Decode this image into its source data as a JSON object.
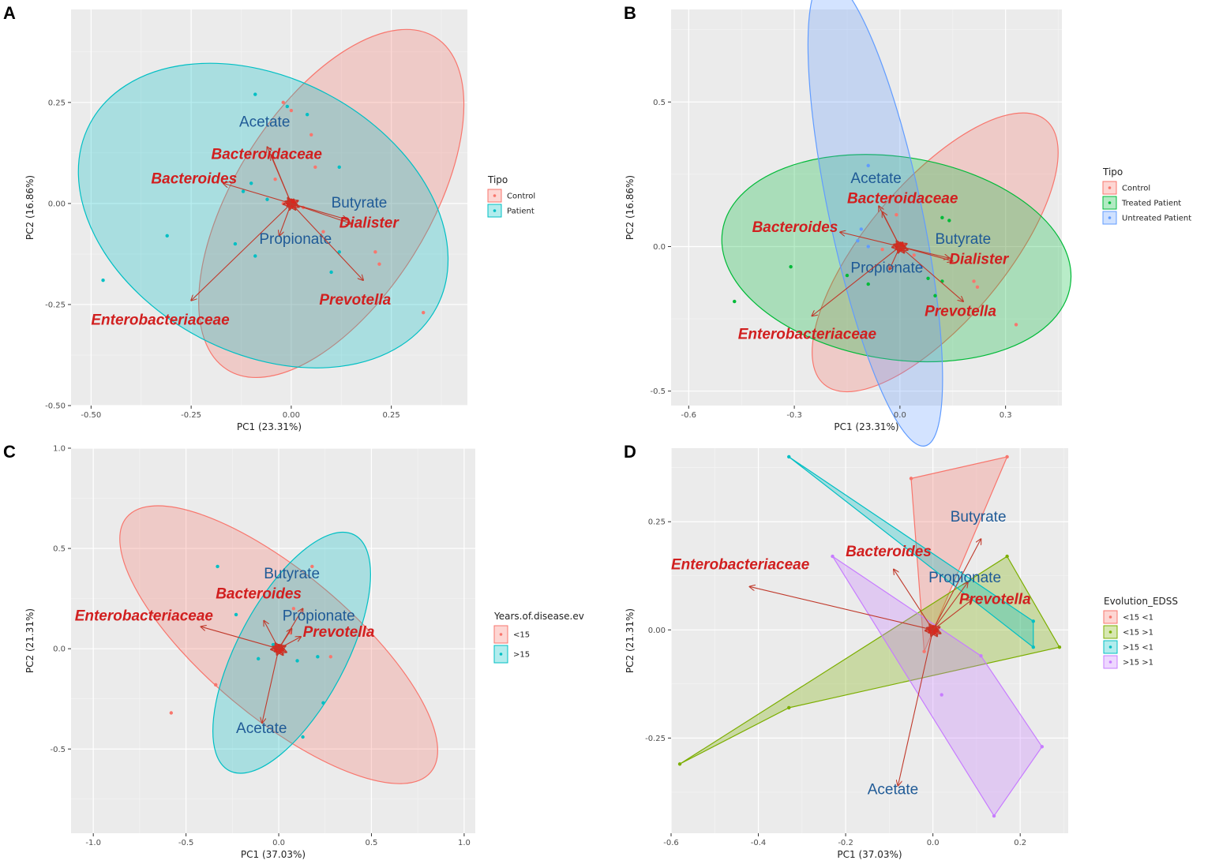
{
  "chart_data": [
    {
      "panel": "A",
      "type": "scatter",
      "title": "",
      "xlabel": "PC1 (23.31%)",
      "ylabel": "PC2 (16.86%)",
      "xlim": [
        -0.55,
        0.44
      ],
      "ylim": [
        -0.5,
        0.48
      ],
      "xticks": [
        -0.5,
        -0.25,
        0.0,
        0.25
      ],
      "xtick_labels": [
        "-0.50",
        "-0.25",
        "0.00",
        "0.25"
      ],
      "yticks": [
        -0.5,
        -0.25,
        0.0,
        0.25
      ],
      "ytick_labels": [
        "-0.50",
        "-0.25",
        "0.00",
        "0.25"
      ],
      "legend_title": "Tipo",
      "legend": [
        {
          "name": "Control",
          "color": "#F8766D"
        },
        {
          "name": "Patient",
          "color": "#00BFC4"
        }
      ],
      "ellipses": [
        {
          "group": "Control",
          "color": "#F8766D",
          "cx": 0.1,
          "cy": 0.0,
          "rx": 0.49,
          "ry": 0.24,
          "angle": -58
        },
        {
          "group": "Patient",
          "color": "#00BFC4",
          "cx": -0.07,
          "cy": -0.03,
          "rx": 0.49,
          "ry": 0.34,
          "angle": 28
        }
      ],
      "points": [
        {
          "x": -0.09,
          "y": 0.27,
          "g": 1
        },
        {
          "x": -0.02,
          "y": 0.25,
          "g": 0
        },
        {
          "x": -0.01,
          "y": 0.24,
          "g": 1
        },
        {
          "x": 0.0,
          "y": 0.23,
          "g": 0
        },
        {
          "x": 0.04,
          "y": 0.22,
          "g": 1
        },
        {
          "x": 0.05,
          "y": 0.17,
          "g": 0
        },
        {
          "x": 0.12,
          "y": 0.09,
          "g": 1
        },
        {
          "x": -0.04,
          "y": 0.06,
          "g": 0
        },
        {
          "x": -0.12,
          "y": 0.03,
          "g": 1
        },
        {
          "x": -0.06,
          "y": 0.01,
          "g": 1
        },
        {
          "x": -0.02,
          "y": 0.0,
          "g": 0
        },
        {
          "x": 0.03,
          "y": -0.01,
          "g": 0
        },
        {
          "x": -0.31,
          "y": -0.08,
          "g": 1
        },
        {
          "x": -0.14,
          "y": -0.1,
          "g": 1
        },
        {
          "x": -0.09,
          "y": -0.13,
          "g": 1
        },
        {
          "x": 0.08,
          "y": -0.07,
          "g": 0
        },
        {
          "x": 0.12,
          "y": -0.12,
          "g": 1
        },
        {
          "x": 0.22,
          "y": -0.15,
          "g": 0
        },
        {
          "x": 0.21,
          "y": -0.12,
          "g": 0
        },
        {
          "x": 0.1,
          "y": -0.17,
          "g": 1
        },
        {
          "x": -0.47,
          "y": -0.19,
          "g": 1
        },
        {
          "x": 0.33,
          "y": -0.27,
          "g": 0
        },
        {
          "x": 0.06,
          "y": 0.09,
          "g": 0
        },
        {
          "x": -0.1,
          "y": 0.05,
          "g": 1
        }
      ],
      "arrows": [
        {
          "label": "Acetate",
          "x": -0.06,
          "y": 0.14,
          "lx": -0.13,
          "ly": 0.19,
          "style": "blue"
        },
        {
          "label": "Bacteroidaceae",
          "x": -0.05,
          "y": 0.12,
          "lx": -0.2,
          "ly": 0.11,
          "style": "red"
        },
        {
          "label": "Bacteroides",
          "x": -0.17,
          "y": 0.05,
          "lx": -0.35,
          "ly": 0.05,
          "style": "red"
        },
        {
          "label": "Butyrate",
          "x": 0.14,
          "y": -0.04,
          "lx": 0.1,
          "ly": -0.01,
          "style": "blue"
        },
        {
          "label": "Dialister",
          "x": 0.15,
          "y": -0.05,
          "lx": 0.12,
          "ly": -0.06,
          "style": "red"
        },
        {
          "label": "Propionate",
          "x": -0.03,
          "y": -0.08,
          "lx": -0.08,
          "ly": -0.1,
          "style": "blue"
        },
        {
          "label": "Prevotella",
          "x": 0.18,
          "y": -0.19,
          "lx": 0.07,
          "ly": -0.25,
          "style": "red"
        },
        {
          "label": "Enterobacteriaceae",
          "x": -0.25,
          "y": -0.24,
          "lx": -0.5,
          "ly": -0.3,
          "style": "red"
        }
      ]
    },
    {
      "panel": "B",
      "type": "scatter",
      "title": "",
      "xlabel": "PC1 (23.31%)",
      "ylabel": "PC2 (16.86%)",
      "xlim": [
        -0.65,
        0.46
      ],
      "ylim": [
        -0.55,
        0.82
      ],
      "xticks": [
        -0.6,
        -0.3,
        0.0,
        0.3
      ],
      "xtick_labels": [
        "-0.6",
        "-0.3",
        "0.0",
        "0.3"
      ],
      "yticks": [
        -0.5,
        0.0,
        0.5
      ],
      "ytick_labels": [
        "-0.5",
        "0.0",
        "0.5"
      ],
      "legend_title": "Tipo",
      "legend": [
        {
          "name": "Control",
          "color": "#F8766D"
        },
        {
          "name": "Treated Patient",
          "color": "#00BA38"
        },
        {
          "name": "Untreated Patient",
          "color": "#619CFF"
        }
      ],
      "ellipses": [
        {
          "group": "Control",
          "color": "#F8766D",
          "cx": 0.1,
          "cy": -0.02,
          "rx": 0.49,
          "ry": 0.24,
          "angle": -50
        },
        {
          "group": "Treated Patient",
          "color": "#00BA38",
          "cx": -0.01,
          "cy": -0.04,
          "rx": 0.5,
          "ry": 0.35,
          "angle": 9
        },
        {
          "group": "Untreated Patient",
          "color": "#619CFF",
          "cx": -0.07,
          "cy": 0.12,
          "rx": 0.68,
          "ry": 0.16,
          "angle": 78
        }
      ],
      "points": [
        {
          "x": -0.09,
          "y": 0.28,
          "g": 2
        },
        {
          "x": -0.03,
          "y": 0.17,
          "g": 0
        },
        {
          "x": -0.01,
          "y": 0.11,
          "g": 0
        },
        {
          "x": 0.12,
          "y": 0.1,
          "g": 1
        },
        {
          "x": 0.14,
          "y": 0.09,
          "g": 1
        },
        {
          "x": -0.12,
          "y": 0.02,
          "g": 2
        },
        {
          "x": -0.09,
          "y": 0.0,
          "g": 2
        },
        {
          "x": -0.05,
          "y": -0.01,
          "g": 0
        },
        {
          "x": 0.04,
          "y": -0.03,
          "g": 0
        },
        {
          "x": -0.31,
          "y": -0.07,
          "g": 1
        },
        {
          "x": -0.15,
          "y": -0.1,
          "g": 1
        },
        {
          "x": -0.09,
          "y": -0.13,
          "g": 1
        },
        {
          "x": 0.08,
          "y": -0.11,
          "g": 1
        },
        {
          "x": 0.12,
          "y": -0.12,
          "g": 1
        },
        {
          "x": 0.22,
          "y": -0.14,
          "g": 0
        },
        {
          "x": 0.21,
          "y": -0.12,
          "g": 0
        },
        {
          "x": 0.1,
          "y": -0.17,
          "g": 1
        },
        {
          "x": -0.47,
          "y": -0.19,
          "g": 1
        },
        {
          "x": 0.33,
          "y": -0.27,
          "g": 0
        },
        {
          "x": -0.11,
          "y": 0.06,
          "g": 2
        },
        {
          "x": 0.06,
          "y": -0.07,
          "g": 2
        }
      ],
      "arrows": [
        {
          "label": "Acetate",
          "x": -0.06,
          "y": 0.14,
          "lx": -0.14,
          "ly": 0.22,
          "style": "blue"
        },
        {
          "label": "Bacteroidaceae",
          "x": -0.05,
          "y": 0.12,
          "lx": -0.15,
          "ly": 0.15,
          "style": "red"
        },
        {
          "label": "Bacteroides",
          "x": -0.17,
          "y": 0.05,
          "lx": -0.42,
          "ly": 0.05,
          "style": "red"
        },
        {
          "label": "Butyrate",
          "x": 0.14,
          "y": -0.04,
          "lx": 0.1,
          "ly": 0.01,
          "style": "blue"
        },
        {
          "label": "Dialister",
          "x": 0.15,
          "y": -0.05,
          "lx": 0.14,
          "ly": -0.06,
          "style": "red"
        },
        {
          "label": "Propionate",
          "x": -0.03,
          "y": -0.08,
          "lx": -0.14,
          "ly": -0.09,
          "style": "blue"
        },
        {
          "label": "Prevotella",
          "x": 0.18,
          "y": -0.19,
          "lx": 0.07,
          "ly": -0.24,
          "style": "red"
        },
        {
          "label": "Enterobacteriaceae",
          "x": -0.25,
          "y": -0.24,
          "lx": -0.46,
          "ly": -0.32,
          "style": "red"
        }
      ]
    },
    {
      "panel": "C",
      "type": "scatter",
      "title": "",
      "xlabel": "PC1 (37.03%)",
      "ylabel": "PC2 (21.31%)",
      "xlim": [
        -1.12,
        1.06
      ],
      "ylim": [
        -0.92,
        1.0
      ],
      "xticks": [
        -1.0,
        -0.5,
        0.0,
        0.5,
        1.0
      ],
      "xtick_labels": [
        "-1.0",
        "-0.5",
        "0.0",
        "0.5",
        "1.0"
      ],
      "yticks": [
        -0.5,
        0.0,
        0.5,
        1.0
      ],
      "ytick_labels": [
        "-0.5",
        "0.0",
        "0.5",
        "1.0"
      ],
      "legend_title": "Years.of.disease.ev",
      "legend": [
        {
          "name": "<15",
          "color": "#F8766D"
        },
        {
          "name": ">15",
          "color": "#00BFC4"
        }
      ],
      "ellipses": [
        {
          "group": "<15",
          "color": "#F8766D",
          "cx": 0.0,
          "cy": 0.02,
          "rx": 1.07,
          "ry": 0.36,
          "angle": 40
        },
        {
          "group": ">15",
          "color": "#00BFC4",
          "cx": 0.07,
          "cy": -0.02,
          "rx": 0.72,
          "ry": 0.27,
          "angle": -62
        }
      ],
      "points": [
        {
          "x": -0.33,
          "y": 0.41,
          "g": 1
        },
        {
          "x": 0.18,
          "y": 0.41,
          "g": 0
        },
        {
          "x": -0.23,
          "y": 0.17,
          "g": 1
        },
        {
          "x": 0.08,
          "y": 0.2,
          "g": 0
        },
        {
          "x": -0.03,
          "y": 0.02,
          "g": 1
        },
        {
          "x": 0.21,
          "y": -0.04,
          "g": 1
        },
        {
          "x": 0.28,
          "y": -0.04,
          "g": 0
        },
        {
          "x": 0.1,
          "y": -0.06,
          "g": 1
        },
        {
          "x": -0.34,
          "y": -0.18,
          "g": 0
        },
        {
          "x": 0.24,
          "y": -0.27,
          "g": 1
        },
        {
          "x": -0.58,
          "y": -0.32,
          "g": 0
        },
        {
          "x": 0.13,
          "y": -0.44,
          "g": 1
        },
        {
          "x": -0.11,
          "y": -0.05,
          "g": 1
        },
        {
          "x": 0.06,
          "y": 0.08,
          "g": 0
        }
      ],
      "arrows": [
        {
          "label": "Butyrate",
          "x": 0.13,
          "y": 0.2,
          "lx": -0.08,
          "ly": 0.35,
          "style": "blue"
        },
        {
          "label": "Bacteroides",
          "x": -0.08,
          "y": 0.14,
          "lx": -0.34,
          "ly": 0.25,
          "style": "red"
        },
        {
          "label": "Propionate",
          "x": 0.07,
          "y": 0.1,
          "lx": 0.02,
          "ly": 0.14,
          "style": "blue"
        },
        {
          "label": "Prevotella",
          "x": 0.12,
          "y": 0.06,
          "lx": 0.13,
          "ly": 0.06,
          "style": "red"
        },
        {
          "label": "Enterobacteriaceae",
          "x": -0.42,
          "y": 0.11,
          "lx": -1.1,
          "ly": 0.14,
          "style": "red"
        },
        {
          "label": "Acetate",
          "x": -0.09,
          "y": -0.37,
          "lx": -0.23,
          "ly": -0.42,
          "style": "blue"
        }
      ]
    },
    {
      "panel": "D",
      "type": "scatter",
      "title": "",
      "xlabel": "PC1 (37.03%)",
      "ylabel": "PC2 (21.31%)",
      "xlim": [
        -0.6,
        0.31
      ],
      "ylim": [
        -0.47,
        0.42
      ],
      "xticks": [
        -0.6,
        -0.4,
        -0.2,
        0.0,
        0.2
      ],
      "xtick_labels": [
        "-0.6",
        "-0.4",
        "-0.2",
        "0.0",
        "0.2"
      ],
      "yticks": [
        -0.25,
        0.0,
        0.25
      ],
      "ytick_labels": [
        "-0.25",
        "0.00",
        "0.25"
      ],
      "legend_title": "Evolution_EDSS",
      "legend": [
        {
          "name": "<15 <1",
          "color": "#F8766D"
        },
        {
          "name": "<15 >1",
          "color": "#7CAE00"
        },
        {
          "name": ">15 <1",
          "color": "#00BFC4"
        },
        {
          "name": ">15 >1",
          "color": "#C77CFF"
        }
      ],
      "hulls": [
        {
          "group": "<15 <1",
          "color": "#F8766D",
          "pts": [
            [
              -0.05,
              0.35
            ],
            [
              0.17,
              0.4
            ],
            [
              -0.02,
              -0.05
            ]
          ]
        },
        {
          "group": "<15 >1",
          "color": "#7CAE00",
          "pts": [
            [
              -0.58,
              -0.31
            ],
            [
              0.17,
              0.17
            ],
            [
              0.29,
              -0.04
            ],
            [
              -0.33,
              -0.18
            ]
          ]
        },
        {
          "group": ">15 <1",
          "color": "#00BFC4",
          "pts": [
            [
              -0.33,
              0.4
            ],
            [
              0.23,
              0.02
            ],
            [
              0.23,
              -0.04
            ]
          ]
        },
        {
          "group": ">15 >1",
          "color": "#C77CFF",
          "pts": [
            [
              -0.23,
              0.17
            ],
            [
              0.11,
              -0.06
            ],
            [
              0.25,
              -0.27
            ],
            [
              0.14,
              -0.43
            ]
          ]
        }
      ],
      "points": [
        {
          "x": -0.05,
          "y": 0.35,
          "g": 0
        },
        {
          "x": 0.17,
          "y": 0.4,
          "g": 0
        },
        {
          "x": -0.02,
          "y": -0.05,
          "g": 0
        },
        {
          "x": -0.58,
          "y": -0.31,
          "g": 1
        },
        {
          "x": 0.17,
          "y": 0.17,
          "g": 1
        },
        {
          "x": 0.29,
          "y": -0.04,
          "g": 1
        },
        {
          "x": -0.33,
          "y": -0.18,
          "g": 1
        },
        {
          "x": -0.33,
          "y": 0.4,
          "g": 2
        },
        {
          "x": 0.23,
          "y": 0.02,
          "g": 2
        },
        {
          "x": 0.23,
          "y": -0.04,
          "g": 2
        },
        {
          "x": -0.23,
          "y": 0.17,
          "g": 3
        },
        {
          "x": 0.11,
          "y": -0.06,
          "g": 3
        },
        {
          "x": 0.25,
          "y": -0.27,
          "g": 3
        },
        {
          "x": 0.14,
          "y": -0.43,
          "g": 3
        },
        {
          "x": 0.02,
          "y": -0.15,
          "g": 3
        }
      ],
      "arrows": [
        {
          "label": "Butyrate",
          "x": 0.11,
          "y": 0.21,
          "lx": 0.04,
          "ly": 0.25,
          "style": "blue"
        },
        {
          "label": "Bacteroides",
          "x": -0.09,
          "y": 0.14,
          "lx": -0.2,
          "ly": 0.17,
          "style": "red"
        },
        {
          "label": "Propionate",
          "x": 0.08,
          "y": 0.11,
          "lx": -0.01,
          "ly": 0.11,
          "style": "blue"
        },
        {
          "label": "Prevotella",
          "x": 0.09,
          "y": 0.07,
          "lx": 0.06,
          "ly": 0.06,
          "style": "red"
        },
        {
          "label": "Enterobacteriaceae",
          "x": -0.42,
          "y": 0.1,
          "lx": -0.6,
          "ly": 0.14,
          "style": "red"
        },
        {
          "label": "Acetate",
          "x": -0.08,
          "y": -0.36,
          "lx": -0.15,
          "ly": -0.38,
          "style": "blue"
        }
      ]
    }
  ]
}
